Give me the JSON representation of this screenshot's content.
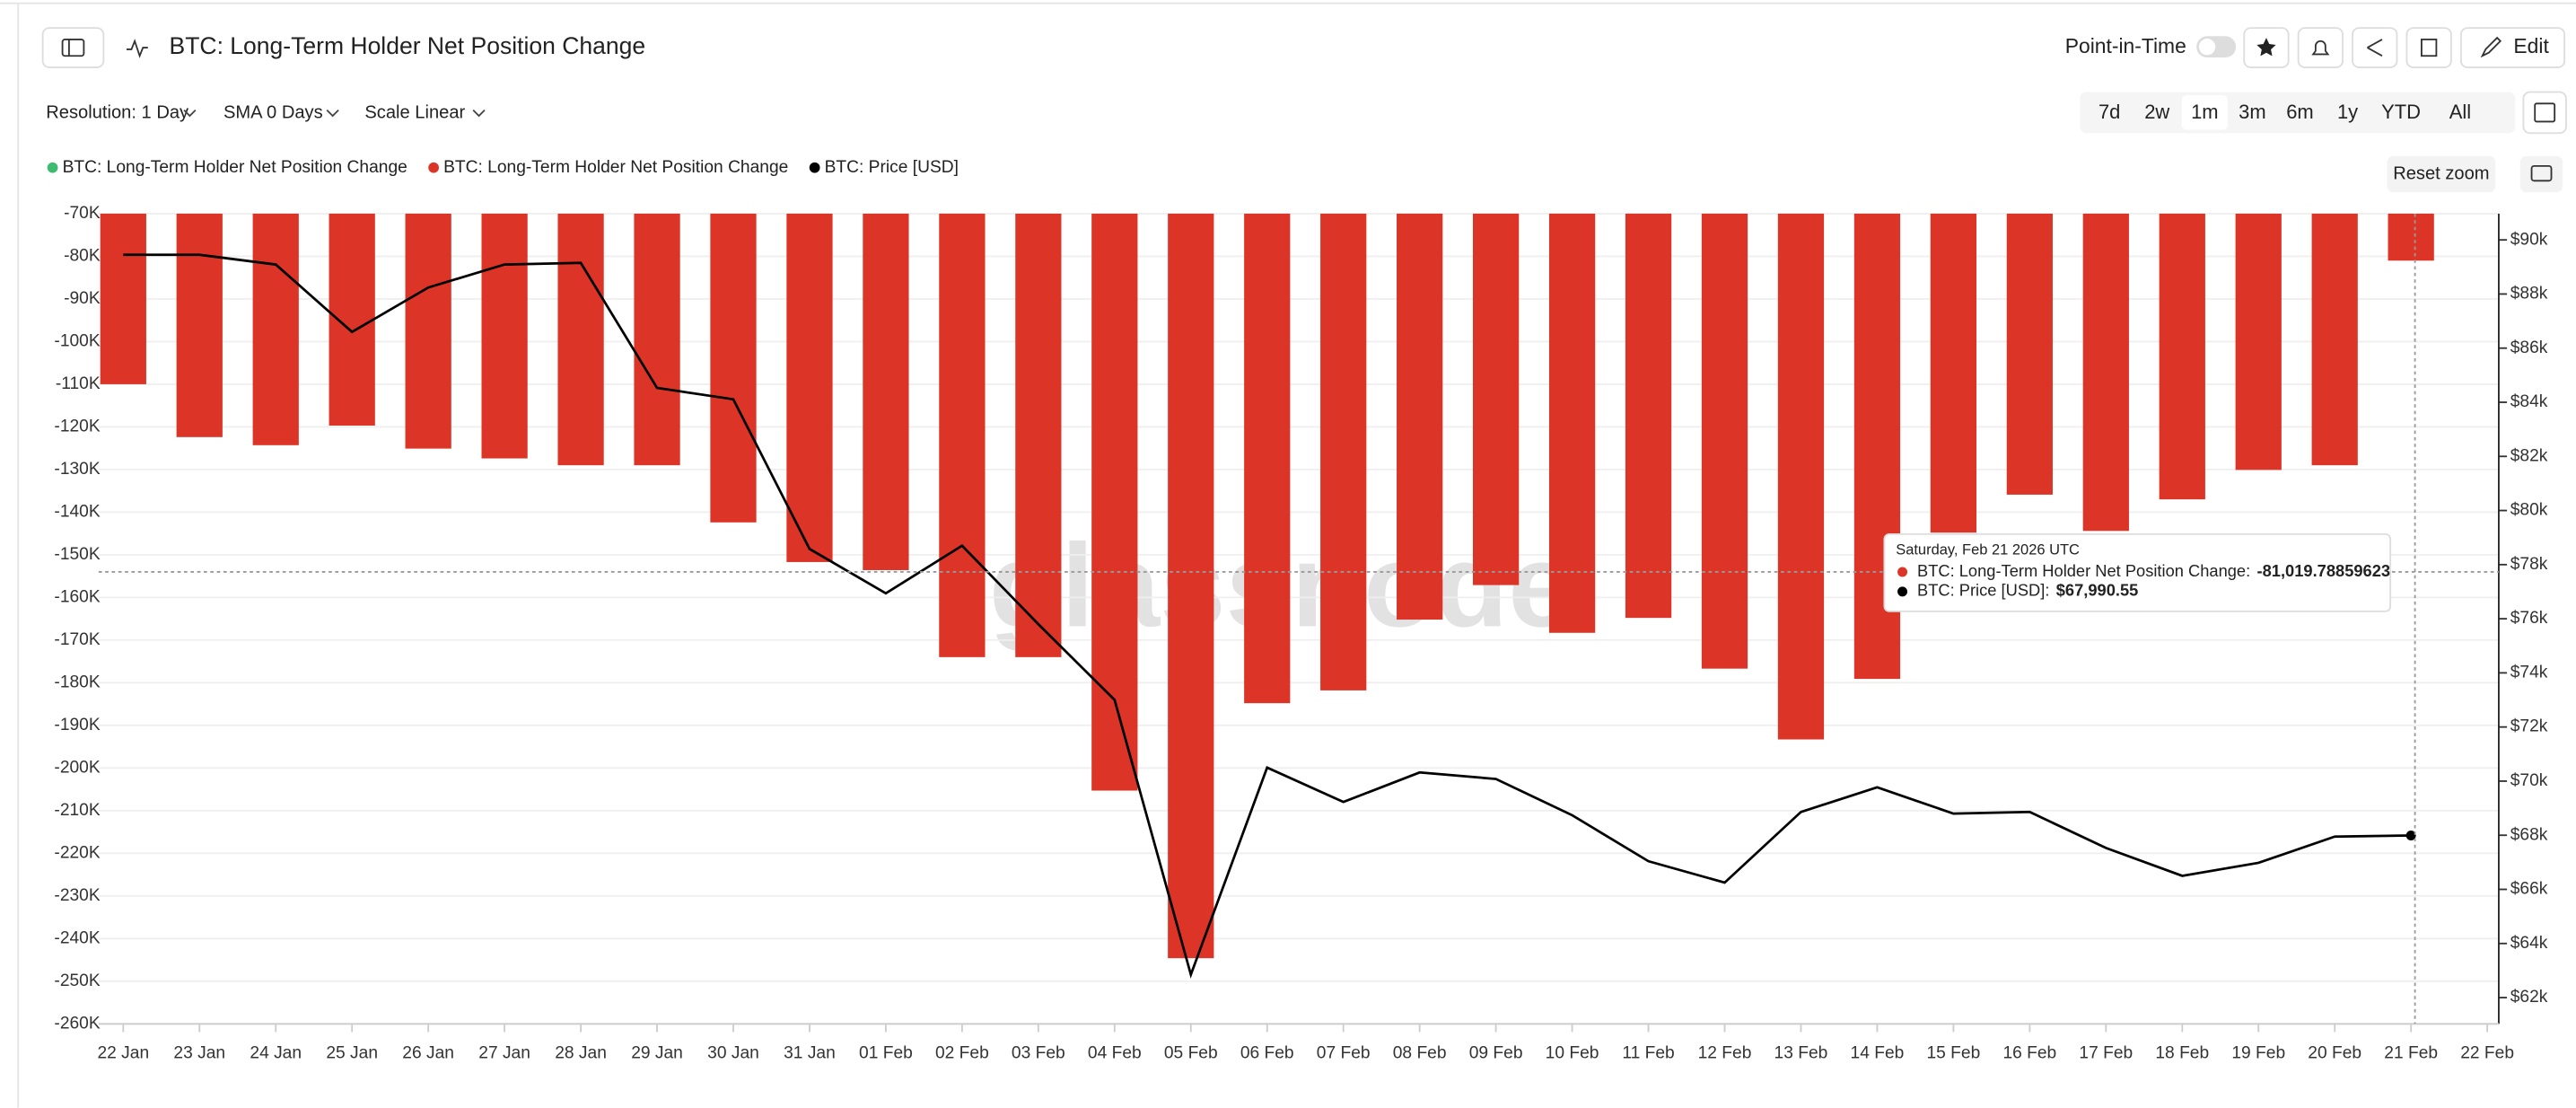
{
  "ui": {
    "title": "BTC: Long-Term Holder Net Position Change",
    "point_in_time": "Point-in-Time",
    "edit": "Edit",
    "resolution": "Resolution: 1 Day",
    "sma": "SMA 0 Days",
    "scale": "Scale Linear",
    "ranges": [
      "7d",
      "2w",
      "1m",
      "3m",
      "6m",
      "1y",
      "YTD",
      "All"
    ],
    "active_range": "1m",
    "reset_zoom": "Reset zoom",
    "watermark": "glassnode"
  },
  "tooltip": {
    "date": "Saturday, Feb 21 2026 UTC",
    "rows": [
      {
        "name": "BTC: Long-Term Holder Net Position Change:",
        "value": "-81,019.78859623",
        "color": "#dc3527"
      },
      {
        "name": "BTC: Price [USD]:",
        "value": "$67,990.55",
        "color": "#000000"
      }
    ]
  },
  "chart_data": {
    "type": "bar",
    "categories": [
      "22 Jan",
      "23 Jan",
      "24 Jan",
      "25 Jan",
      "26 Jan",
      "27 Jan",
      "28 Jan",
      "29 Jan",
      "30 Jan",
      "31 Jan",
      "01 Feb",
      "02 Feb",
      "03 Feb",
      "04 Feb",
      "05 Feb",
      "06 Feb",
      "07 Feb",
      "08 Feb",
      "09 Feb",
      "10 Feb",
      "11 Feb",
      "12 Feb",
      "13 Feb",
      "14 Feb",
      "15 Feb",
      "16 Feb",
      "17 Feb",
      "18 Feb",
      "19 Feb",
      "20 Feb",
      "21 Feb",
      "22 Feb"
    ],
    "series": [
      {
        "name": "BTC: Long-Term Holder Net Position Change",
        "color": "#3dbb6e",
        "values": [
          null,
          null,
          null,
          null,
          null,
          null,
          null,
          null,
          null,
          null,
          null,
          null,
          null,
          null,
          null,
          null,
          null,
          null,
          null,
          null,
          null,
          null,
          null,
          null,
          null,
          null,
          null,
          null,
          null,
          null,
          null,
          null
        ]
      },
      {
        "name": "BTC: Long-Term Holder Net Position Change",
        "color": "#dc3527",
        "values": [
          -110000,
          -122400,
          -124300,
          -119700,
          -125100,
          -127400,
          -129000,
          -129000,
          -142400,
          -151700,
          -153600,
          -174000,
          -174000,
          -205300,
          -244600,
          -184800,
          -181800,
          -165200,
          -157100,
          -168300,
          -164800,
          -176700,
          -193300,
          -179100,
          -144800,
          -135900,
          -144400,
          -137000,
          -130100,
          -129000,
          -81019.78859623,
          null
        ]
      },
      {
        "name": "BTC: Price [USD]",
        "color": "#000000",
        "type": "line",
        "axis": "y2",
        "values": [
          89450,
          89450,
          89090,
          86600,
          88240,
          89090,
          89150,
          84530,
          84110,
          78580,
          76940,
          78700,
          75800,
          73000,
          62850,
          70500,
          69230,
          70320,
          70080,
          68740,
          67040,
          66250,
          68860,
          69770,
          68800,
          68860,
          67530,
          66500,
          66980,
          67950,
          67990.55,
          null
        ]
      }
    ],
    "ylim": [
      -260000,
      -70000
    ],
    "yticks": [
      {
        "value": -70000,
        "label": "-70K"
      },
      {
        "value": -80000,
        "label": "-80K"
      },
      {
        "value": -90000,
        "label": "-90K"
      },
      {
        "value": -100000,
        "label": "-100K"
      },
      {
        "value": -110000,
        "label": "-110K"
      },
      {
        "value": -120000,
        "label": "-120K"
      },
      {
        "value": -130000,
        "label": "-130K"
      },
      {
        "value": -140000,
        "label": "-140K"
      },
      {
        "value": -150000,
        "label": "-150K"
      },
      {
        "value": -160000,
        "label": "-160K"
      },
      {
        "value": -170000,
        "label": "-170K"
      },
      {
        "value": -180000,
        "label": "-180K"
      },
      {
        "value": -190000,
        "label": "-190K"
      },
      {
        "value": -200000,
        "label": "-200K"
      },
      {
        "value": -210000,
        "label": "-210K"
      },
      {
        "value": -220000,
        "label": "-220K"
      },
      {
        "value": -230000,
        "label": "-230K"
      },
      {
        "value": -240000,
        "label": "-240K"
      },
      {
        "value": -250000,
        "label": "-250K"
      },
      {
        "value": -260000,
        "label": "-260K"
      }
    ],
    "y2lim": [
      61030,
      90970
    ],
    "y2ticks": [
      {
        "value": 62000,
        "label": "$62k"
      },
      {
        "value": 64000,
        "label": "$64k"
      },
      {
        "value": 66000,
        "label": "$66k"
      },
      {
        "value": 68000,
        "label": "$68k"
      },
      {
        "value": 70000,
        "label": "$70k"
      },
      {
        "value": 72000,
        "label": "$72k"
      },
      {
        "value": 74000,
        "label": "$74k"
      },
      {
        "value": 76000,
        "label": "$76k"
      },
      {
        "value": 78000,
        "label": "$78k"
      },
      {
        "value": 80000,
        "label": "$80k"
      },
      {
        "value": 82000,
        "label": "$82k"
      },
      {
        "value": 84000,
        "label": "$84k"
      },
      {
        "value": 86000,
        "label": "$86k"
      },
      {
        "value": 88000,
        "label": "$88k"
      },
      {
        "value": 90000,
        "label": "$90k"
      }
    ],
    "grid": true,
    "legend": "top-left"
  }
}
